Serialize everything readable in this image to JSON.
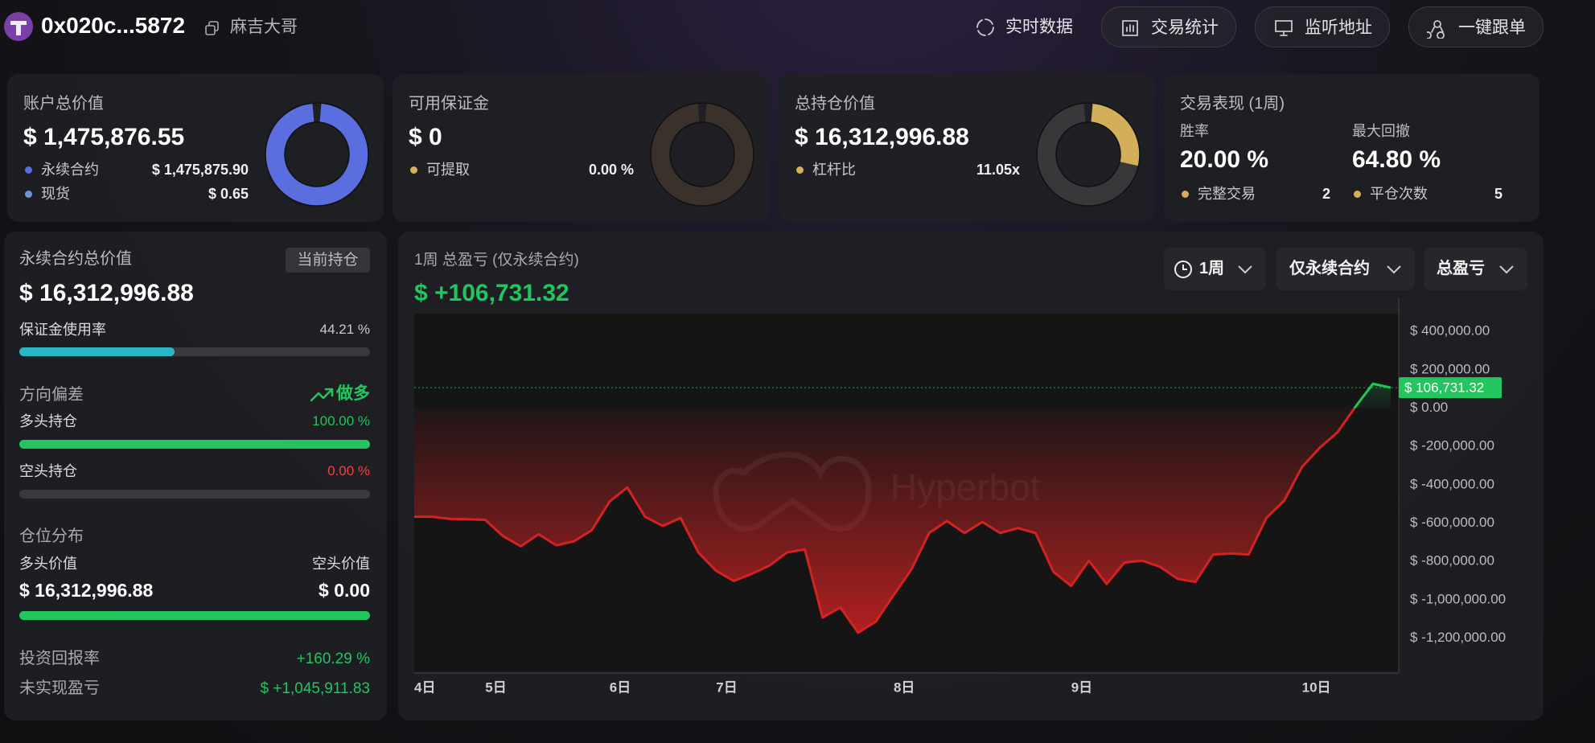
{
  "header": {
    "address": "0x020c...5872",
    "nickname": "麻吉大哥",
    "buttons": [
      "实时数据",
      "交易统计",
      "监听地址",
      "一键跟单"
    ]
  },
  "cards": [
    {
      "title": "账户总价值",
      "value": "$ 1,475,876.55",
      "ring": 100,
      "ring_color": "#5a6ee0",
      "track_color": "#2f3350",
      "items": [
        {
          "label": "永续合约",
          "value": "$ 1,475,875.90",
          "color": "#5a6ee0"
        },
        {
          "label": "现货",
          "value": "$ 0.65",
          "color": "#6f93d9"
        }
      ]
    },
    {
      "title": "可用保证金",
      "value": "$ 0",
      "ring": 0,
      "ring_color": "#d4af5a",
      "track_color": "#3a312a",
      "items": [
        {
          "label": "可提取",
          "value": "0.00 %",
          "color": "#d4af5a"
        }
      ]
    },
    {
      "title": "总持仓价值",
      "value": "$ 16,312,996.88",
      "ring": 28,
      "ring_color": "#d4af5a",
      "track_color": "#38383a",
      "items": [
        {
          "label": "杠杆比",
          "value": "11.05x",
          "color": "#d4af5a"
        }
      ]
    }
  ],
  "performance": {
    "title": "交易表现 (1周)",
    "stats": [
      {
        "label": "胜率",
        "value": "20.00 %"
      },
      {
        "label": "最大回撤",
        "value": "64.80 %"
      }
    ],
    "counts": [
      {
        "label": "完整交易",
        "value": "2"
      },
      {
        "label": "平仓次数",
        "value": "5"
      }
    ],
    "color": "#d4af5a"
  },
  "perp": {
    "title": "永续合约总价值",
    "tag": "当前持仓",
    "value": "$ 16,312,996.88",
    "margin": {
      "label": "保证金使用率",
      "value": 44.21,
      "value_label": "44.21 %",
      "color": "#2bb6c6"
    },
    "bias": {
      "label": "方向偏差",
      "value": "做多"
    },
    "long": {
      "label": "多头持仓",
      "value": 100,
      "value_label": "100.00 %",
      "color": "#22c55e"
    },
    "short": {
      "label": "空头持仓",
      "value": 0,
      "value_label": "0.00 %",
      "color": "#ef4444"
    },
    "distribution": {
      "label": "仓位分布",
      "long_label": "多头价值",
      "short_label": "空头价值",
      "long_value": 16312996.88,
      "long_value_label": "$ 16,312,996.88",
      "short_value": 0,
      "short_value_label": "$ 0.00"
    },
    "roi": {
      "label": "投资回报率",
      "value": "+160.29 %"
    },
    "unrealized": {
      "label": "未实现盈亏",
      "value": "$ +1,045,911.83"
    }
  },
  "controls": [
    "1周",
    "仅永续合约",
    "总盈亏"
  ],
  "chart_data": {
    "type": "line",
    "title": "1周 总盈亏 (仅永续合约)",
    "total": "$ +106,731.32",
    "watermark": "Hyperbot",
    "categories": [
      "4日",
      null,
      null,
      null,
      "5日",
      null,
      null,
      null,
      null,
      null,
      null,
      "6日",
      null,
      null,
      null,
      null,
      null,
      "7日",
      null,
      null,
      null,
      null,
      null,
      null,
      null,
      null,
      null,
      "8日",
      null,
      null,
      null,
      null,
      null,
      null,
      null,
      null,
      null,
      "9日",
      null,
      null,
      null,
      null,
      null,
      null,
      null,
      null,
      null,
      null,
      null,
      null,
      "10日",
      null,
      null,
      null,
      null,
      null
    ],
    "values": [
      -567000,
      -567000,
      -578000,
      -580000,
      -583000,
      -668000,
      -721000,
      -658000,
      -716000,
      -695000,
      -637000,
      -488000,
      -414000,
      -567000,
      -615000,
      -573000,
      -753000,
      -849000,
      -902000,
      -865000,
      -822000,
      -753000,
      -737000,
      -1093000,
      -1040000,
      -1172000,
      -1114000,
      -976000,
      -843000,
      -652000,
      -589000,
      -652000,
      -594000,
      -652000,
      -626000,
      -652000,
      -854000,
      -928000,
      -796000,
      -918000,
      -806000,
      -796000,
      -828000,
      -891000,
      -907000,
      -764000,
      -759000,
      -764000,
      -573000,
      -483000,
      -308000,
      -207000,
      -127000,
      5000,
      127000,
      106731.32
    ],
    "positive_color": "#22c55e",
    "negative_color": "#d32222",
    "marker": {
      "value": 106731.32,
      "label": "$ 106,731.32"
    },
    "ylim": [
      -1374000,
      493000
    ],
    "yticks": [
      {
        "value": 400000,
        "label": "$ 400,000.00"
      },
      {
        "value": 200000,
        "label": "$ 200,000.00"
      },
      {
        "value": 0,
        "label": "$ 0.00"
      },
      {
        "value": -200000,
        "label": "$ -200,000.00"
      },
      {
        "value": -400000,
        "label": "$ -400,000.00"
      },
      {
        "value": -600000,
        "label": "$ -600,000.00"
      },
      {
        "value": -800000,
        "label": "$ -800,000.00"
      },
      {
        "value": -1000000,
        "label": "$ -1,000,000.00"
      },
      {
        "value": -1200000,
        "label": "$ -1,200,000.00"
      }
    ],
    "grid": false
  }
}
